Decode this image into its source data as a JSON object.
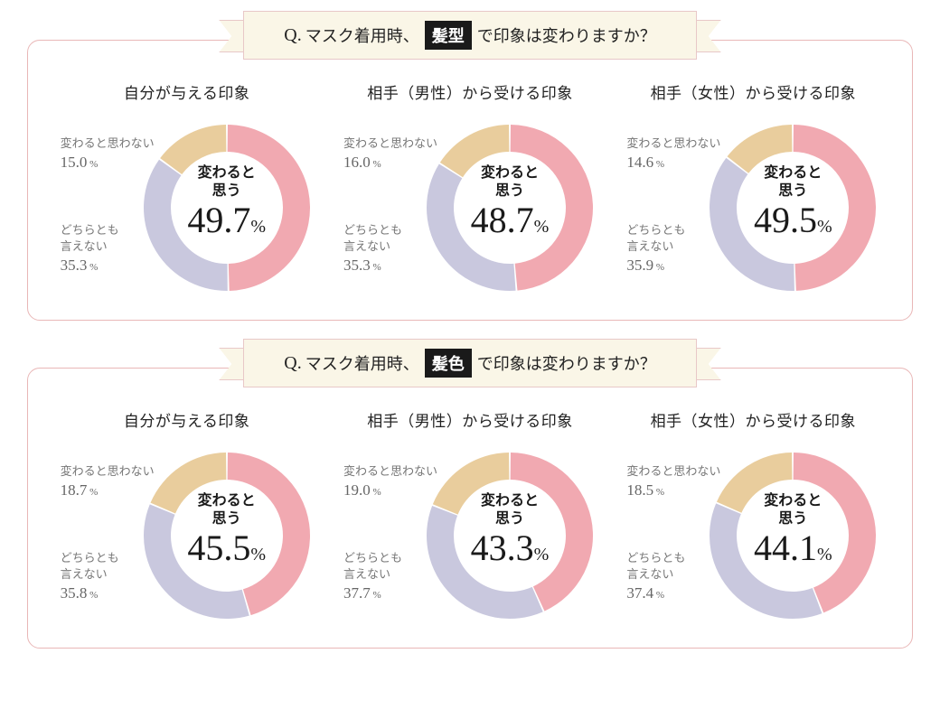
{
  "colors": {
    "primary": "#f1a9b1",
    "neutral": "#c9c8de",
    "dontknow": "#e9cd9d",
    "panel_border": "#e9b7b7",
    "banner_bg": "#faf6e7",
    "banner_border": "#e8c8c8",
    "text": "#222222",
    "muted": "#777777"
  },
  "chart_style": {
    "type": "donut",
    "outer_radius": 92,
    "inner_radius": 62,
    "gap_deg": 1.2,
    "start_angle": -90,
    "background": "#ffffff",
    "center_label_fontsize": 16,
    "center_value_fontsize": 40,
    "center_pct_fontsize": 20,
    "side_label_fontsize": 13,
    "side_value_fontsize": 17,
    "chart_title_fontsize": 17,
    "banner_fontsize": 18
  },
  "blocks": [
    {
      "question_prefix": "Q.",
      "question_before": "マスク着用時、",
      "question_highlight": "髪型",
      "question_after": "で印象は変わりますか？",
      "charts": [
        {
          "title": "自分が与える印象",
          "main_label": "変わると\n思う",
          "main_value": "49.7",
          "segments": [
            {
              "label": "変わると思う",
              "value": 49.7,
              "color": "#f1a9b1"
            },
            {
              "label": "どちらとも\n言えない",
              "value": 35.3,
              "color": "#c9c8de"
            },
            {
              "label": "変わると思わない",
              "value": 15.0,
              "color": "#e9cd9d"
            }
          ],
          "side_top": {
            "label": "変わると思わない",
            "value": "15.0"
          },
          "side_bottom": {
            "label": "どちらとも\n言えない",
            "value": "35.3"
          }
        },
        {
          "title": "相手（男性）から受ける印象",
          "main_label": "変わると\n思う",
          "main_value": "48.7",
          "segments": [
            {
              "label": "変わると思う",
              "value": 48.7,
              "color": "#f1a9b1"
            },
            {
              "label": "どちらとも言えない",
              "value": 35.3,
              "color": "#c9c8de"
            },
            {
              "label": "変わると思わない",
              "value": 16.0,
              "color": "#e9cd9d"
            }
          ],
          "side_top": {
            "label": "変わると思わない",
            "value": "16.0"
          },
          "side_bottom": {
            "label": "どちらとも\n言えない",
            "value": "35.3"
          }
        },
        {
          "title": "相手（女性）から受ける印象",
          "main_label": "変わると\n思う",
          "main_value": "49.5",
          "segments": [
            {
              "label": "変わると思う",
              "value": 49.5,
              "color": "#f1a9b1"
            },
            {
              "label": "どちらとも言えない",
              "value": 35.9,
              "color": "#c9c8de"
            },
            {
              "label": "変わると思わない",
              "value": 14.6,
              "color": "#e9cd9d"
            }
          ],
          "side_top": {
            "label": "変わると思わない",
            "value": "14.6"
          },
          "side_bottom": {
            "label": "どちらとも\n言えない",
            "value": "35.9"
          }
        }
      ]
    },
    {
      "question_prefix": "Q.",
      "question_before": "マスク着用時、",
      "question_highlight": "髪色",
      "question_after": "で印象は変わりますか？",
      "charts": [
        {
          "title": "自分が与える印象",
          "main_label": "変わると\n思う",
          "main_value": "45.5",
          "segments": [
            {
              "label": "変わると思う",
              "value": 45.5,
              "color": "#f1a9b1"
            },
            {
              "label": "どちらとも言えない",
              "value": 35.8,
              "color": "#c9c8de"
            },
            {
              "label": "変わると思わない",
              "value": 18.7,
              "color": "#e9cd9d"
            }
          ],
          "side_top": {
            "label": "変わると思わない",
            "value": "18.7"
          },
          "side_bottom": {
            "label": "どちらとも\n言えない",
            "value": "35.8"
          }
        },
        {
          "title": "相手（男性）から受ける印象",
          "main_label": "変わると\n思う",
          "main_value": "43.3",
          "segments": [
            {
              "label": "変わると思う",
              "value": 43.3,
              "color": "#f1a9b1"
            },
            {
              "label": "どちらとも言えない",
              "value": 37.7,
              "color": "#c9c8de"
            },
            {
              "label": "変わると思わない",
              "value": 19.0,
              "color": "#e9cd9d"
            }
          ],
          "side_top": {
            "label": "変わると思わない",
            "value": "19.0"
          },
          "side_bottom": {
            "label": "どちらとも\n言えない",
            "value": "37.7"
          }
        },
        {
          "title": "相手（女性）から受ける印象",
          "main_label": "変わると\n思う",
          "main_value": "44.1",
          "segments": [
            {
              "label": "変わると思う",
              "value": 44.1,
              "color": "#f1a9b1"
            },
            {
              "label": "どちらとも言えない",
              "value": 37.4,
              "color": "#c9c8de"
            },
            {
              "label": "変わると思わない",
              "value": 18.5,
              "color": "#e9cd9d"
            }
          ],
          "side_top": {
            "label": "変わると思わない",
            "value": "18.5"
          },
          "side_bottom": {
            "label": "どちらとも\n言えない",
            "value": "37.4"
          }
        }
      ]
    }
  ]
}
